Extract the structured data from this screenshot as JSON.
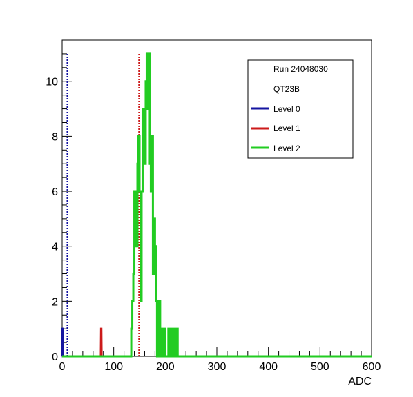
{
  "chart_data": {
    "type": "line",
    "xlabel": "ADC",
    "ylabel": "",
    "xlim": [
      0,
      600
    ],
    "ylim": [
      0,
      11.5
    ],
    "x_ticks": [
      0,
      100,
      200,
      300,
      400,
      500,
      600
    ],
    "x_tick_labels": [
      "0",
      "100",
      "200",
      "300",
      "400",
      "500",
      "600"
    ],
    "y_ticks": [
      0,
      2,
      4,
      6,
      8,
      10
    ],
    "y_tick_labels": [
      "0",
      "2",
      "4",
      "6",
      "8",
      "10"
    ],
    "grid": false,
    "legend": {
      "placement": "top-right",
      "entries": [
        {
          "label": "Run 24048030",
          "color": ""
        },
        {
          "label": "QT23B",
          "color": ""
        },
        {
          "label": "Level 0",
          "color": "#1414a0"
        },
        {
          "label": "Level 1",
          "color": "#cc1a1a"
        },
        {
          "label": "Level 2",
          "color": "#22cc22"
        }
      ]
    },
    "series": [
      {
        "name": "Level 0",
        "color": "#1414a0",
        "style": "solid",
        "x": [
          0,
          1,
          2
        ],
        "y": [
          0,
          1,
          0
        ]
      },
      {
        "name": "Level 0",
        "color": "#1414a0",
        "style": "dotted",
        "x": [
          10,
          10
        ],
        "y": [
          0,
          11
        ]
      },
      {
        "name": "Level 1",
        "color": "#cc1a1a",
        "style": "solid",
        "x": [
          75,
          76,
          77
        ],
        "y": [
          0,
          1,
          0
        ]
      },
      {
        "name": "Level 1",
        "color": "#cc1a1a",
        "style": "dotted",
        "x": [
          149,
          149
        ],
        "y": [
          0,
          11
        ]
      },
      {
        "name": "Level 2",
        "color": "#22cc22",
        "style": "solid",
        "bin_width": 2,
        "x": [
          132,
          134,
          136,
          138,
          140,
          142,
          144,
          146,
          148,
          150,
          152,
          154,
          156,
          158,
          160,
          162,
          164,
          166,
          168,
          170,
          172,
          174,
          176,
          178,
          180,
          182,
          184,
          186,
          188,
          190,
          192,
          194,
          196,
          198,
          200,
          202,
          204,
          206,
          208,
          210,
          212,
          214,
          216,
          218,
          220,
          222,
          224
        ],
        "y": [
          0,
          1,
          2,
          3,
          6,
          5,
          4,
          7,
          8,
          6,
          2,
          6,
          9,
          8,
          7,
          10,
          11,
          9,
          11,
          7,
          6,
          8,
          3,
          5,
          4,
          2,
          0,
          1,
          2,
          0,
          0,
          1,
          0,
          1,
          0,
          0,
          0,
          1,
          0,
          0,
          1,
          0,
          0,
          1,
          0,
          1,
          0
        ]
      }
    ]
  }
}
